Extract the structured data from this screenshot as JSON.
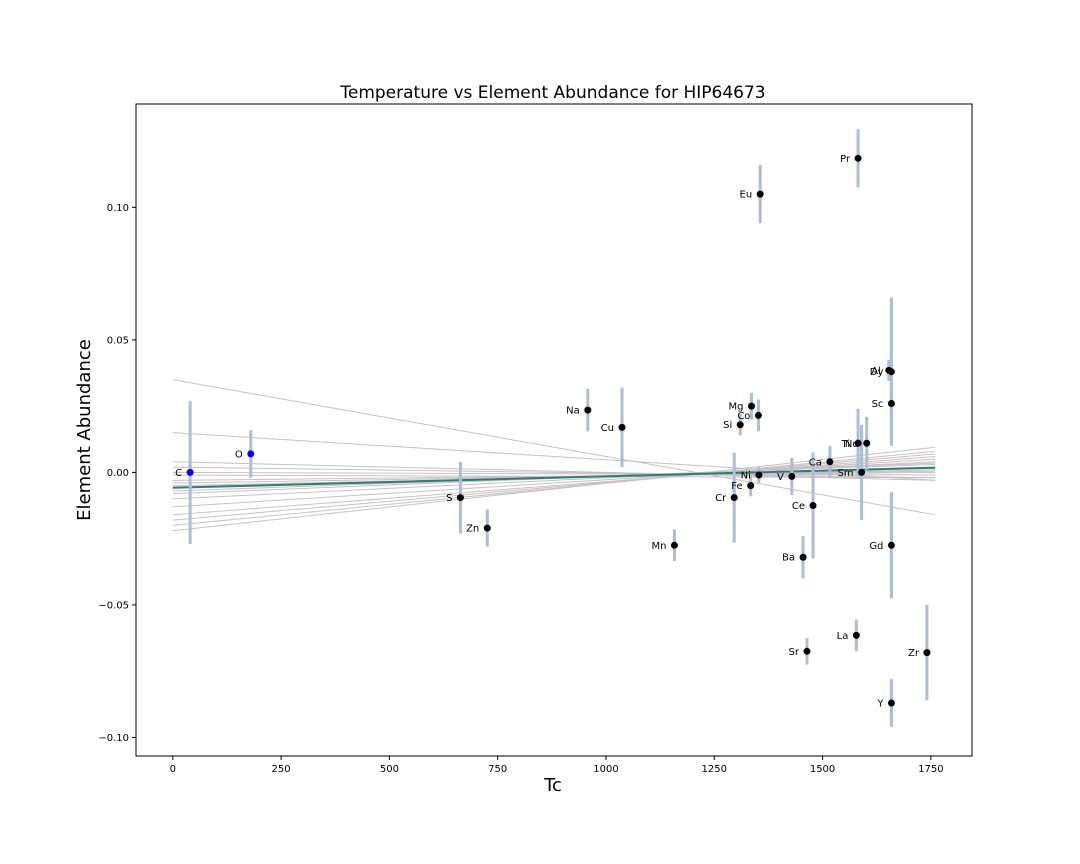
{
  "chart_data": {
    "type": "scatter",
    "title": "Temperature vs Element Abundance for HIP64673",
    "xlabel": "Tc",
    "ylabel": "Element Abundance",
    "xlim": [
      -85,
      1845
    ],
    "ylim": [
      -0.107,
      0.139
    ],
    "xticks": [
      0,
      250,
      500,
      750,
      1000,
      1250,
      1500,
      1750
    ],
    "yticks": [
      -0.1,
      -0.05,
      0.0,
      0.05,
      0.1
    ],
    "ytick_labels": [
      "−0.10",
      "−0.05",
      "0.00",
      "0.05",
      "0.10"
    ],
    "grid": false,
    "colors": {
      "volatile_point": "#0000ff",
      "refractory_point": "#000000",
      "error_bar": "#a7bfd9",
      "bootstrap_lines": "#c8c0c4",
      "fit_line": "#2a7f72"
    },
    "points": [
      {
        "element": "C",
        "x": 40,
        "y": 0.0,
        "err": 0.027,
        "group": "volatile"
      },
      {
        "element": "O",
        "x": 180,
        "y": 0.007,
        "err": 0.009,
        "group": "volatile"
      },
      {
        "element": "S",
        "x": 664,
        "y": -0.0095,
        "err": 0.0135,
        "group": "refractory"
      },
      {
        "element": "Zn",
        "x": 726,
        "y": -0.021,
        "err": 0.007,
        "group": "refractory"
      },
      {
        "element": "Na",
        "x": 958,
        "y": 0.0235,
        "err": 0.008,
        "group": "refractory"
      },
      {
        "element": "Cu",
        "x": 1037,
        "y": 0.017,
        "err": 0.015,
        "group": "refractory"
      },
      {
        "element": "Mn",
        "x": 1158,
        "y": -0.0275,
        "err": 0.006,
        "group": "refractory"
      },
      {
        "element": "Cr",
        "x": 1296,
        "y": -0.0095,
        "err": 0.017,
        "group": "refractory"
      },
      {
        "element": "Si",
        "x": 1310,
        "y": 0.018,
        "err": 0.004,
        "group": "refractory"
      },
      {
        "element": "Fe",
        "x": 1334,
        "y": -0.005,
        "err": 0.004,
        "group": "refractory"
      },
      {
        "element": "Mg",
        "x": 1336,
        "y": 0.025,
        "err": 0.005,
        "group": "refractory"
      },
      {
        "element": "Co",
        "x": 1352,
        "y": 0.0215,
        "err": 0.006,
        "group": "refractory"
      },
      {
        "element": "Ni",
        "x": 1353,
        "y": -0.001,
        "err": 0.003,
        "group": "refractory"
      },
      {
        "element": "Eu",
        "x": 1356,
        "y": 0.105,
        "err": 0.011,
        "group": "refractory"
      },
      {
        "element": "V",
        "x": 1429,
        "y": -0.0015,
        "err": 0.007,
        "group": "refractory"
      },
      {
        "element": "Ba",
        "x": 1455,
        "y": -0.032,
        "err": 0.008,
        "group": "refractory"
      },
      {
        "element": "Sr",
        "x": 1464,
        "y": -0.0675,
        "err": 0.005,
        "group": "refractory"
      },
      {
        "element": "Ce",
        "x": 1478,
        "y": -0.0125,
        "err": 0.02,
        "group": "refractory"
      },
      {
        "element": "Ca",
        "x": 1517,
        "y": 0.004,
        "err": 0.006,
        "group": "refractory"
      },
      {
        "element": "La",
        "x": 1578,
        "y": -0.0615,
        "err": 0.006,
        "group": "refractory"
      },
      {
        "element": "Ti",
        "x": 1582,
        "y": 0.011,
        "err": 0.013,
        "group": "refractory"
      },
      {
        "element": "Pr",
        "x": 1582,
        "y": 0.1185,
        "err": 0.011,
        "group": "refractory"
      },
      {
        "element": "Sm",
        "x": 1590,
        "y": 0.0,
        "err": 0.018,
        "group": "refractory"
      },
      {
        "element": "Nd",
        "x": 1602,
        "y": 0.011,
        "err": 0.01,
        "group": "refractory"
      },
      {
        "element": "Al",
        "x": 1653,
        "y": 0.0385,
        "err": 0.004,
        "group": "refractory"
      },
      {
        "element": "Dy",
        "x": 1659,
        "y": 0.038,
        "err": 0.028,
        "group": "refractory"
      },
      {
        "element": "Sc",
        "x": 1659,
        "y": 0.026,
        "err": 0.005,
        "group": "refractory"
      },
      {
        "element": "Gd",
        "x": 1659,
        "y": -0.0275,
        "err": 0.02,
        "group": "refractory"
      },
      {
        "element": "Y",
        "x": 1659,
        "y": -0.087,
        "err": 0.009,
        "group": "refractory"
      },
      {
        "element": "Zr",
        "x": 1741,
        "y": -0.068,
        "err": 0.018,
        "group": "refractory"
      }
    ],
    "fit_line": {
      "x": [
        0,
        1760
      ],
      "y": [
        -0.0058,
        0.0018
      ]
    },
    "bootstrap_lines": [
      {
        "y0": 0.035,
        "y1": -0.016
      },
      {
        "y0": 0.015,
        "y1": -0.003
      },
      {
        "y0": -0.022,
        "y1": 0.0095
      },
      {
        "y0": -0.02,
        "y1": 0.008
      },
      {
        "y0": -0.018,
        "y1": 0.007
      },
      {
        "y0": -0.016,
        "y1": 0.006
      },
      {
        "y0": -0.013,
        "y1": 0.005
      },
      {
        "y0": -0.01,
        "y1": 0.004
      },
      {
        "y0": -0.008,
        "y1": 0.0035
      },
      {
        "y0": -0.007,
        "y1": 0.003
      },
      {
        "y0": -0.0055,
        "y1": 0.0015
      },
      {
        "y0": -0.005,
        "y1": 0.001
      },
      {
        "y0": -0.004,
        "y1": 0.0005
      },
      {
        "y0": -0.003,
        "y1": 0.0
      },
      {
        "y0": -0.001,
        "y1": -0.002
      },
      {
        "y0": 0.002,
        "y1": -0.002
      },
      {
        "y0": 0.004,
        "y1": -0.003
      },
      {
        "y0": 0.0,
        "y1": -0.001
      }
    ]
  }
}
